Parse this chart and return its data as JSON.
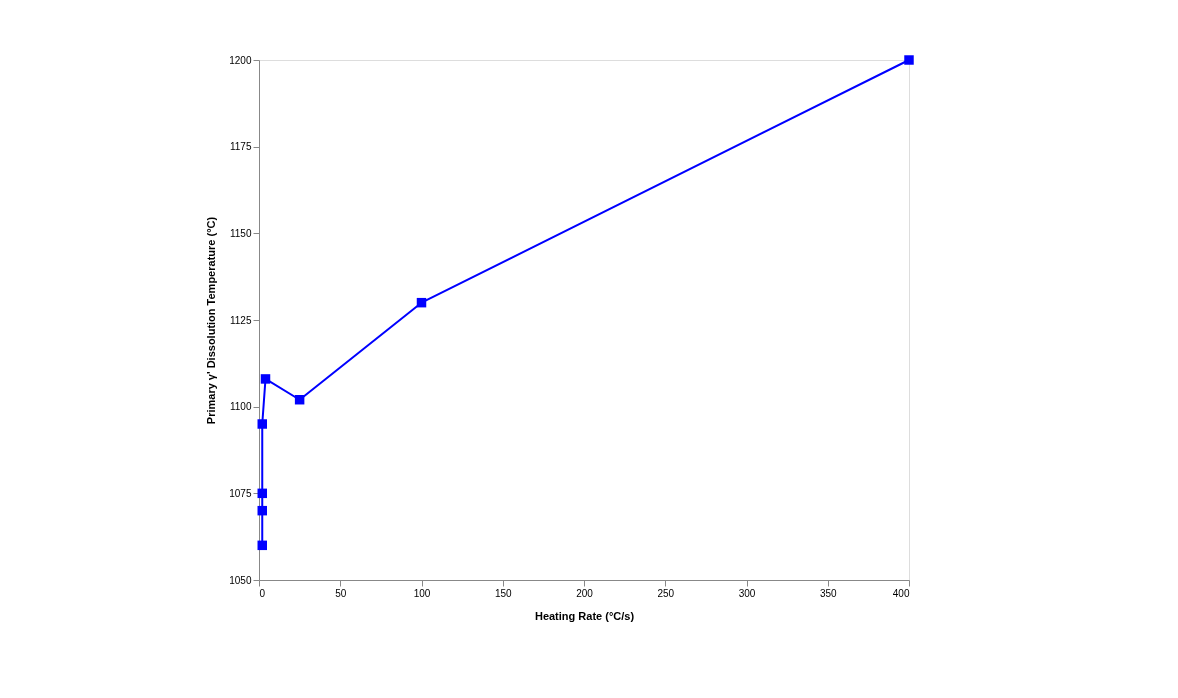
{
  "chart_data": {
    "type": "line",
    "xlabel": "Heating Rate (°C/s)",
    "ylabel": "Primary γ' Dissolution Temperature (°C)",
    "x": [
      2,
      2,
      2,
      2,
      4,
      25,
      100,
      400
    ],
    "series": [
      {
        "color": "#0000ff",
        "values": [
          1060,
          1070,
          1075,
          1095,
          1108,
          1102,
          1130,
          1200
        ]
      }
    ],
    "xlim": [
      0,
      400
    ],
    "xticks": [
      0,
      50,
      100,
      150,
      200,
      250,
      300,
      350,
      400
    ],
    "ylim": [
      1050,
      1200
    ],
    "yticks": [
      1050,
      1075,
      1100,
      1125,
      1150,
      1175,
      1200
    ],
    "grid": false,
    "marker": "square",
    "line_style": "solid"
  }
}
